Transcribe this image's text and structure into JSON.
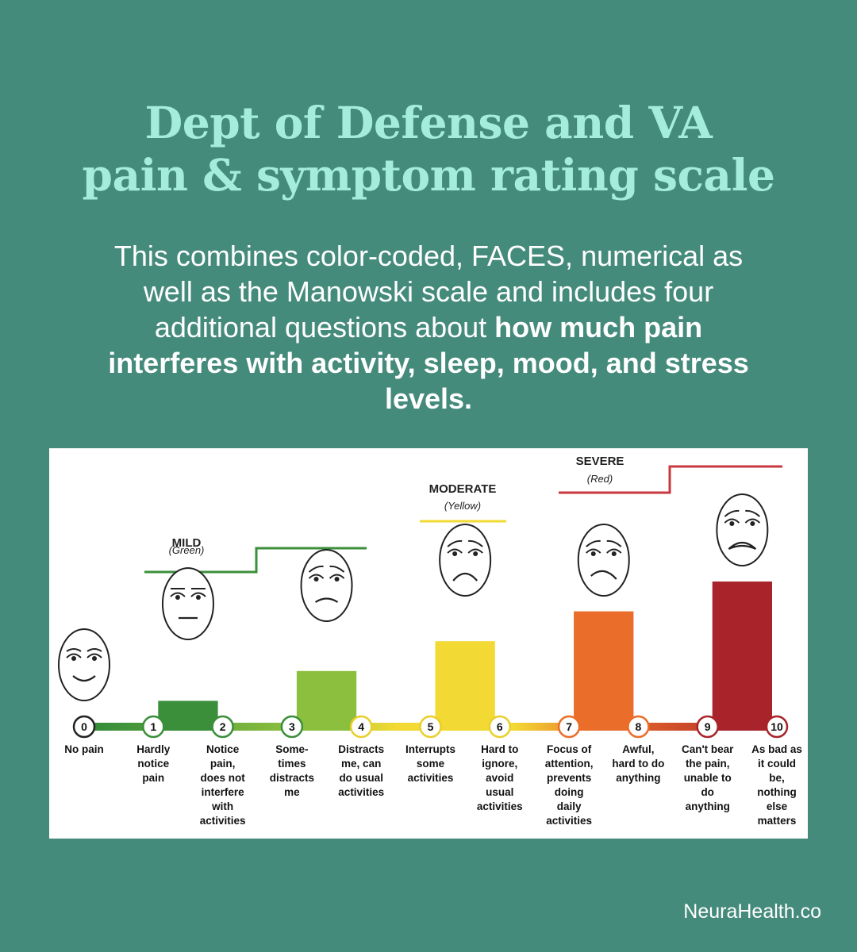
{
  "header": {
    "title_line1": "Dept of Defense and VA",
    "title_line2": "pain & symptom rating scale",
    "subtitle_plain": "This combines color-coded, FACES, numerical as well as the Manowski scale and includes four additional questions about ",
    "subtitle_bold": "how much pain interferes with activity, sleep, mood, and stress levels."
  },
  "footer": {
    "credit": "NeuraHealth.co"
  },
  "colors": {
    "background": "#458b7c",
    "title": "#a4ecdb",
    "green": "#3b8f3a",
    "light_green": "#8dbf3e",
    "yellow": "#f2d934",
    "orange": "#ea6d2a",
    "red": "#a8242a"
  },
  "chart_data": {
    "type": "bar",
    "title": "",
    "levels": [
      {
        "name": "MILD",
        "color_label": "(Green)"
      },
      {
        "name": "MODERATE",
        "color_label": "(Yellow)"
      },
      {
        "name": "SEVERE",
        "color_label": "(Red)"
      }
    ],
    "points": [
      {
        "score": "0",
        "label": [
          "No pain"
        ],
        "face": "smile"
      },
      {
        "score": "1",
        "label": [
          "Hardly",
          "notice",
          "pain"
        ],
        "face": "neutral"
      },
      {
        "score": "2",
        "label": [
          "Notice",
          "pain,",
          "does not",
          "interfere",
          "with",
          "activities"
        ],
        "face": "none"
      },
      {
        "score": "3",
        "label": [
          "Some-",
          "times",
          "distracts",
          "me"
        ],
        "face": "slight-frown"
      },
      {
        "score": "4",
        "label": [
          "Distracts",
          "me, can",
          "do usual",
          "activities"
        ],
        "face": "none"
      },
      {
        "score": "5",
        "label": [
          "Interrupts",
          "some",
          "activities"
        ],
        "face": "frown"
      },
      {
        "score": "6",
        "label": [
          "Hard to",
          "ignore,",
          "avoid",
          "usual",
          "activities"
        ],
        "face": "none"
      },
      {
        "score": "7",
        "label": [
          "Focus of",
          "attention,",
          "prevents",
          "doing",
          "daily",
          "activities"
        ],
        "face": "distressed"
      },
      {
        "score": "8",
        "label": [
          "Awful,",
          "hard to do",
          "anything"
        ],
        "face": "none"
      },
      {
        "score": "9",
        "label": [
          "Can't bear",
          "the pain,",
          "unable to",
          "do",
          "anything"
        ],
        "face": "crying"
      },
      {
        "score": "10",
        "label": [
          "As bad as",
          "it could",
          "be,",
          "nothing",
          "else",
          "matters"
        ],
        "face": "none"
      }
    ],
    "bars": [
      {
        "from": 1,
        "to": 2,
        "value": 2,
        "color": "#3b8f3a"
      },
      {
        "from": 3,
        "to": 4,
        "value": 4,
        "color": "#8dbf3e"
      },
      {
        "from": 5,
        "to": 6,
        "value": 6,
        "color": "#f2d934"
      },
      {
        "from": 7,
        "to": 8,
        "value": 8,
        "color": "#ea6d2a"
      },
      {
        "from": 9,
        "to": 10,
        "value": 10,
        "color": "#a8242a"
      }
    ],
    "ylim": [
      0,
      10
    ]
  }
}
